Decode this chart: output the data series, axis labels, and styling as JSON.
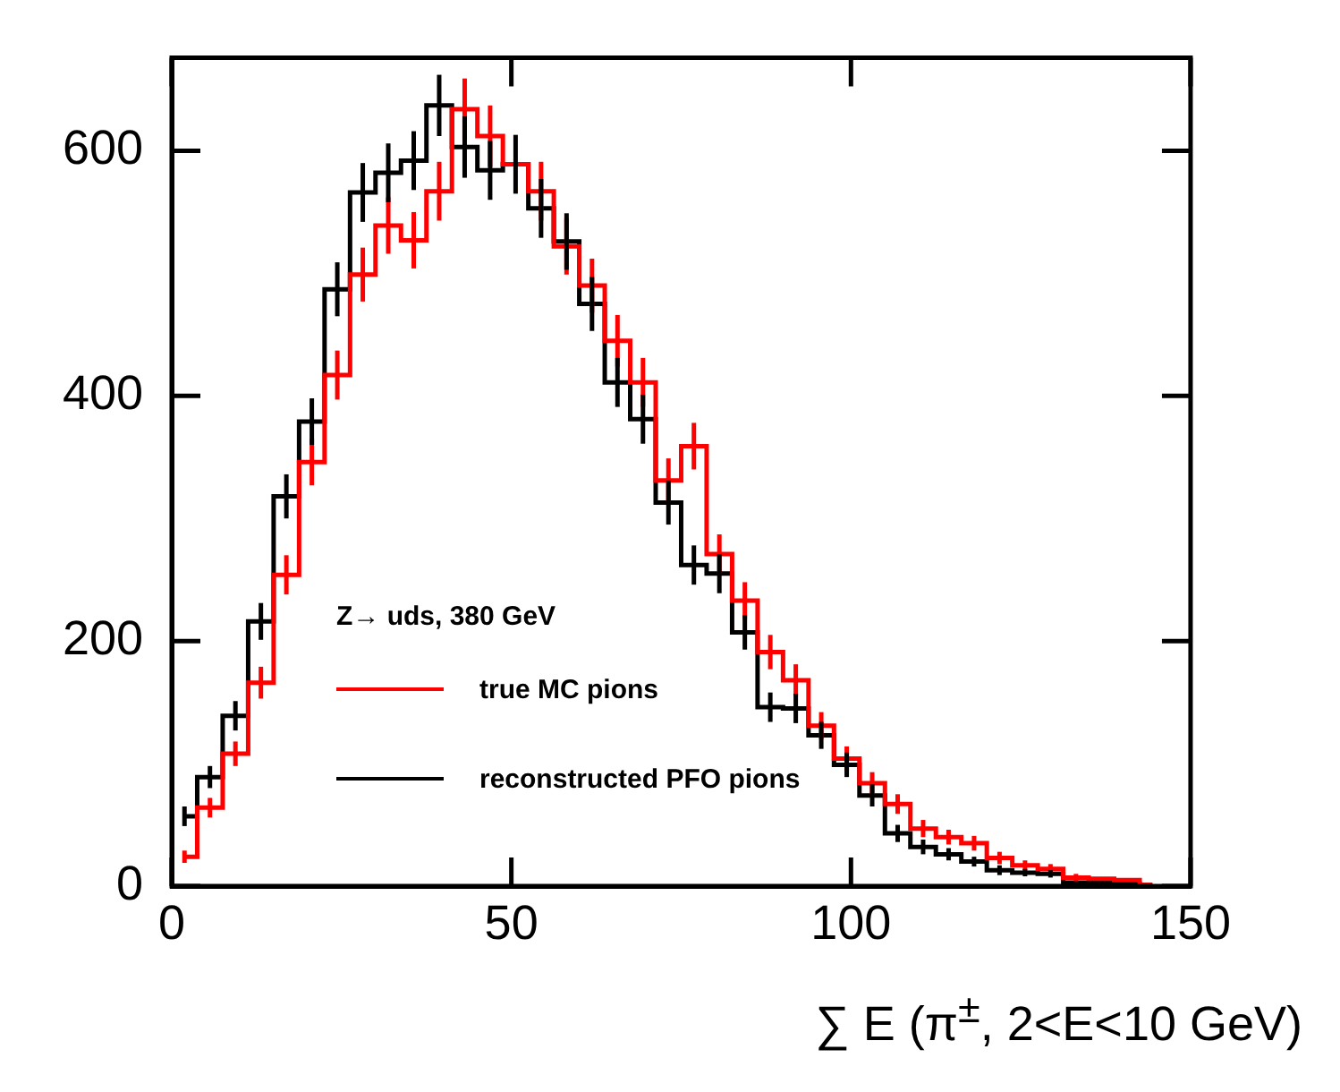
{
  "chart_data": {
    "type": "step",
    "xlabel": "∑ E (π$^{±}$, 2<E<10 GeV)",
    "legend_title": "Z→ uds, 380 GeV",
    "legend": "left",
    "x": [
      1.875,
      5.625,
      9.375,
      13.125,
      16.875,
      20.625,
      24.375,
      28.125,
      31.875,
      35.625,
      39.375,
      43.125,
      46.875,
      50.625,
      54.375,
      58.125,
      61.875,
      65.625,
      69.375,
      73.125,
      76.875,
      80.625,
      84.375,
      88.125,
      91.875,
      95.625,
      99.375,
      103.125,
      106.875,
      110.625,
      114.375,
      118.125,
      121.875,
      125.625,
      129.375,
      133.125,
      136.875,
      140.625,
      144.375
    ],
    "series": [
      {
        "name": "true MC pions",
        "color": "#ff0000",
        "values": [
          24,
          64,
          108,
          166,
          254,
          346,
          417,
          499,
          539,
          527,
          567,
          634,
          612,
          589,
          567,
          522,
          490,
          445,
          411,
          331,
          359,
          271,
          233,
          191,
          168,
          131,
          104,
          84,
          67,
          47,
          40,
          35,
          23,
          17,
          14,
          7,
          6,
          5,
          1
        ],
        "errors": [
          5,
          8,
          10,
          13,
          16,
          19,
          20,
          22,
          23,
          23,
          24,
          25,
          25,
          null,
          24,
          23,
          22,
          21,
          20,
          18,
          19,
          16,
          15,
          14,
          13,
          11,
          10,
          9,
          8,
          7,
          6,
          6,
          5,
          4,
          4,
          3,
          null,
          null,
          null
        ]
      },
      {
        "name": "reconstructed PFO pions",
        "color": "#000000",
        "values": [
          57,
          89,
          139,
          216,
          318,
          379,
          487,
          566,
          582,
          592,
          637,
          603,
          584,
          589,
          553,
          526,
          475,
          411,
          381,
          313,
          262,
          255,
          207,
          146,
          145,
          123,
          99,
          74,
          43,
          32,
          26,
          20,
          13,
          11,
          10,
          3,
          3,
          2,
          1
        ],
        "errors": [
          8,
          9,
          12,
          15,
          18,
          19,
          22,
          24,
          24,
          24,
          25,
          25,
          24,
          24,
          24,
          23,
          22,
          20,
          20,
          18,
          16,
          16,
          14,
          12,
          12,
          11,
          10,
          9,
          7,
          6,
          5,
          4,
          4,
          3,
          3,
          null,
          null,
          null,
          null
        ]
      }
    ],
    "xlim": [
      0,
      150
    ],
    "xticks": [
      0,
      50,
      100,
      150
    ],
    "ylim": [
      0,
      676
    ],
    "yticks": [
      0,
      200,
      400,
      600
    ],
    "grid": false
  }
}
